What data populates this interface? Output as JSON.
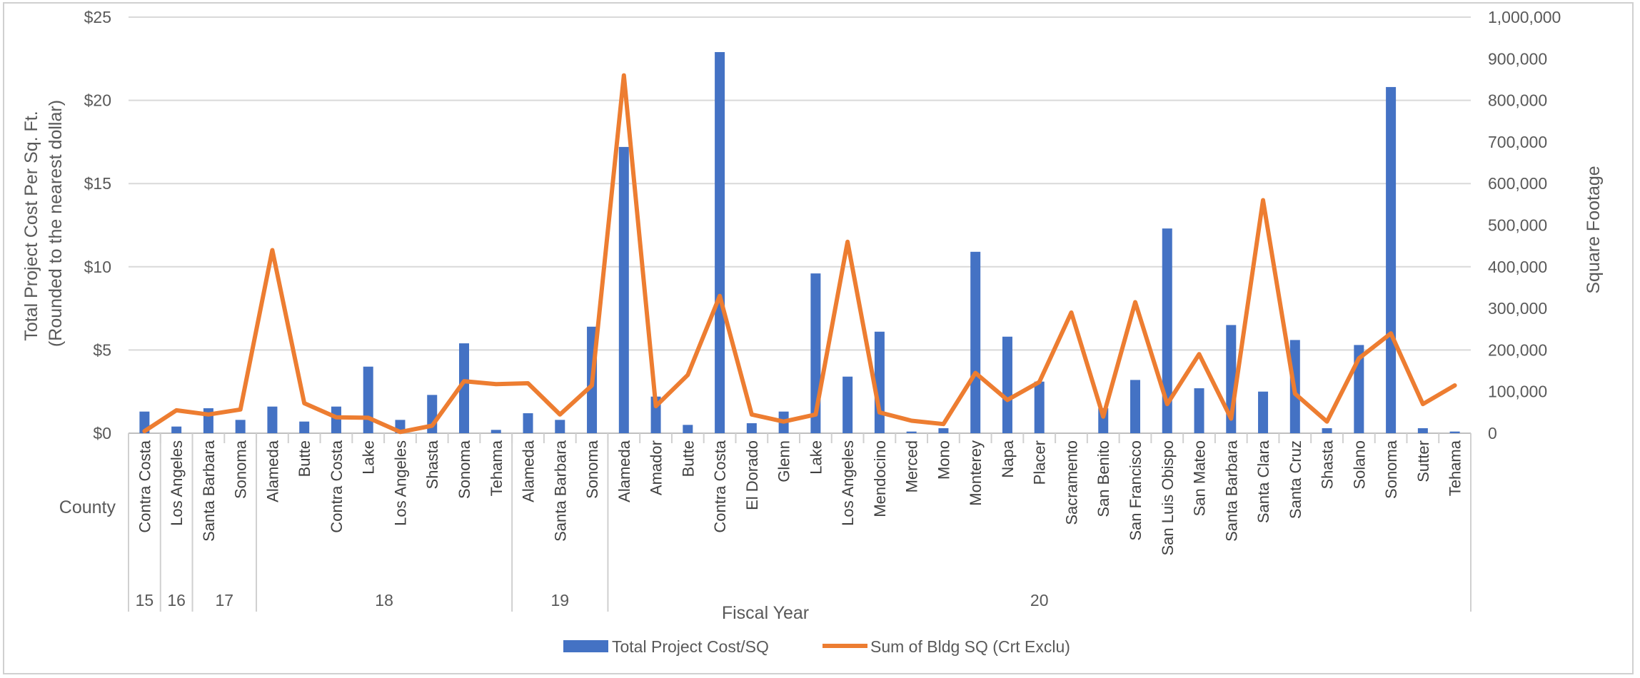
{
  "chart_data": {
    "type": "bar",
    "categories": [
      "Contra Costa",
      "Los Angeles",
      "Santa Barbara",
      "Sonoma",
      "Alameda",
      "Butte",
      "Contra Costa",
      "Lake",
      "Los Angeles",
      "Shasta",
      "Sonoma",
      "Tehama",
      "Alameda",
      "Santa Barbara",
      "Sonoma",
      "Alameda",
      "Amador",
      "Butte",
      "Contra Costa",
      "El Dorado",
      "Glenn",
      "Lake",
      "Los Angeles",
      "Mendocino",
      "Merced",
      "Mono",
      "Monterey",
      "Napa",
      "Placer",
      "Sacramento",
      "San Benito",
      "San Francisco",
      "San Luis Obispo",
      "San Mateo",
      "Santa Barbara",
      "Santa Clara",
      "Santa Cruz",
      "Shasta",
      "Solano",
      "Sonoma",
      "Sutter",
      "Tehama"
    ],
    "fiscal_years": [
      {
        "label": "15",
        "start": 0,
        "end": 0
      },
      {
        "label": "16",
        "start": 1,
        "end": 1
      },
      {
        "label": "17",
        "start": 2,
        "end": 3
      },
      {
        "label": "18",
        "start": 4,
        "end": 11
      },
      {
        "label": "19",
        "start": 12,
        "end": 14
      },
      {
        "label": "20",
        "start": 15,
        "end": 41
      }
    ],
    "series": [
      {
        "name": "Total Project Cost/SQ",
        "type": "bar",
        "axis": "left",
        "color": "#4472C4",
        "values": [
          1.3,
          0.4,
          1.5,
          0.8,
          1.6,
          0.7,
          1.6,
          4.0,
          0.8,
          2.3,
          5.4,
          0.2,
          1.2,
          0.8,
          6.4,
          17.2,
          2.2,
          0.5,
          22.9,
          0.6,
          1.3,
          9.6,
          3.4,
          6.1,
          0.1,
          0.3,
          10.9,
          5.8,
          3.1,
          0,
          1.5,
          3.2,
          12.3,
          2.7,
          6.5,
          2.5,
          5.6,
          0.3,
          5.3,
          20.8,
          0.3,
          0.1
        ]
      },
      {
        "name": "Sum of Bldg SQ (Crt Exclu)",
        "type": "line",
        "axis": "right",
        "color": "#ED7D31",
        "values": [
          5000,
          55000,
          45000,
          57000,
          440000,
          72000,
          38000,
          37000,
          3000,
          18000,
          125000,
          118000,
          120000,
          45000,
          115000,
          860000,
          65000,
          140000,
          330000,
          45000,
          28000,
          45000,
          460000,
          50000,
          30000,
          22000,
          145000,
          80000,
          123000,
          290000,
          40000,
          315000,
          70000,
          190000,
          35000,
          560000,
          95000,
          28000,
          180000,
          240000,
          70000,
          115000
        ]
      }
    ],
    "yleft": {
      "label_line1": "Total Project Cost Per Sq. Ft.",
      "label_line2": "(Rounded to the nearest dollar)",
      "min": 0,
      "max": 25,
      "ticks": [
        0,
        5,
        10,
        15,
        20,
        25
      ],
      "tick_labels": [
        "$0",
        "$5",
        "$10",
        "$15",
        "$20",
        "$25"
      ]
    },
    "yright": {
      "label": "Square Footage",
      "min": 0,
      "max": 1000000,
      "ticks": [
        0,
        100000,
        200000,
        300000,
        400000,
        500000,
        600000,
        700000,
        800000,
        900000,
        1000000
      ],
      "tick_labels": [
        "0",
        "100,000",
        "200,000",
        "300,000",
        "400,000",
        "500,000",
        "600,000",
        "700,000",
        "800,000",
        "900,000",
        "1,000,000"
      ]
    },
    "row_label": "County",
    "xlabel": "Fiscal Year",
    "grid": true,
    "legend_position": "bottom"
  }
}
